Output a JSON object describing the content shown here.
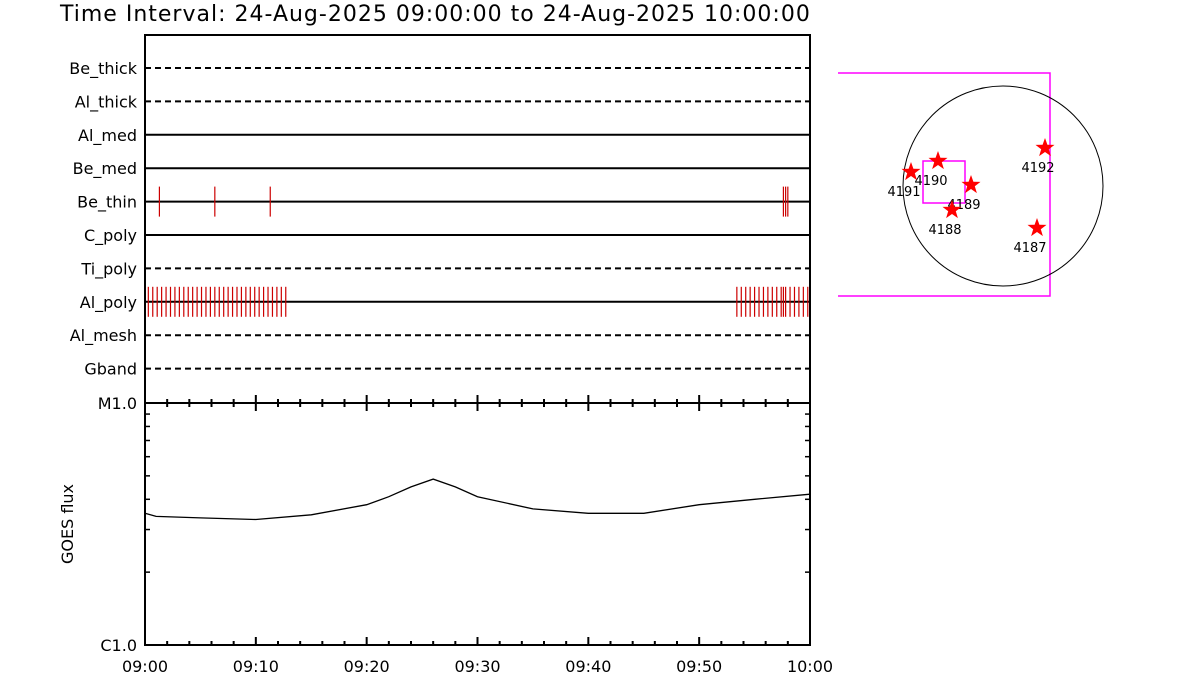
{
  "title": "Time Interval: 24-Aug-2025 09:00:00 to 24-Aug-2025 10:00:00",
  "colors": {
    "axis": "#000000",
    "event_tick": "#cc0000",
    "fov_box": "#ff00ff",
    "star": "#ff0000"
  },
  "chart_data": [
    {
      "type": "timeline",
      "xlabel": "",
      "x_range": [
        "09:00",
        "10:00"
      ],
      "tick_labels": [
        "09:00",
        "09:10",
        "09:20",
        "09:30",
        "09:40",
        "09:50",
        "10:00"
      ],
      "rows": [
        {
          "label": "Be_thick",
          "style": "dashed",
          "events": []
        },
        {
          "label": "Al_thick",
          "style": "dashed",
          "events": []
        },
        {
          "label": "Al_med",
          "style": "solid",
          "events": []
        },
        {
          "label": "Be_med",
          "style": "solid",
          "events": []
        },
        {
          "label": "Be_thin",
          "style": "solid",
          "events": [
            "09:01:18",
            "09:06:18",
            "09:11:18",
            "09:57:36",
            "09:57:48",
            "09:58:00"
          ]
        },
        {
          "label": "C_poly",
          "style": "solid",
          "events": []
        },
        {
          "label": "Ti_poly",
          "style": "dashed",
          "events": []
        },
        {
          "label": "Al_poly",
          "style": "solid",
          "events": [
            "09:00:18",
            "09:00:42",
            "09:01:06",
            "09:01:30",
            "09:01:54",
            "09:02:18",
            "09:02:42",
            "09:03:06",
            "09:03:30",
            "09:03:54",
            "09:04:18",
            "09:04:42",
            "09:05:06",
            "09:05:30",
            "09:05:54",
            "09:06:18",
            "09:06:42",
            "09:07:06",
            "09:07:30",
            "09:07:54",
            "09:08:18",
            "09:08:42",
            "09:09:06",
            "09:09:30",
            "09:09:54",
            "09:10:18",
            "09:10:42",
            "09:11:06",
            "09:11:30",
            "09:11:54",
            "09:12:18",
            "09:12:42",
            "09:53:24",
            "09:53:48",
            "09:54:12",
            "09:54:36",
            "09:55:00",
            "09:55:24",
            "09:55:48",
            "09:56:12",
            "09:56:36",
            "09:57:00",
            "09:57:24",
            "09:57:36",
            "09:57:48",
            "09:58:12",
            "09:58:36",
            "09:59:00",
            "09:59:24",
            "09:59:48"
          ]
        },
        {
          "label": "Al_mesh",
          "style": "dashed",
          "events": []
        },
        {
          "label": "Gband",
          "style": "dashed",
          "events": []
        }
      ]
    },
    {
      "type": "line",
      "ylabel": "GOES flux",
      "y_scale": "log",
      "ylim": [
        1e-06,
        1e-05
      ],
      "y_tick_labels": [
        "C1.0",
        "M1.0"
      ],
      "x": [
        "09:00",
        "09:01",
        "09:05",
        "09:10",
        "09:15",
        "09:20",
        "09:22",
        "09:24",
        "09:26",
        "09:28",
        "09:30",
        "09:35",
        "09:40",
        "09:45",
        "09:50",
        "09:55",
        "10:00"
      ],
      "series": [
        {
          "values": [
            3.5e-06,
            3.4e-06,
            3.35e-06,
            3.3e-06,
            3.45e-06,
            3.8e-06,
            4.1e-06,
            4.5e-06,
            4.85e-06,
            4.5e-06,
            4.1e-06,
            3.65e-06,
            3.5e-06,
            3.5e-06,
            3.8e-06,
            4e-06,
            4.2e-06
          ]
        }
      ]
    },
    {
      "type": "scatter",
      "subtype": "solar-disk-map",
      "points": [
        {
          "label": "4192",
          "x": 0.42,
          "y": 0.38
        },
        {
          "label": "4190",
          "x": -0.65,
          "y": 0.25
        },
        {
          "label": "4191",
          "x": -0.92,
          "y": 0.14
        },
        {
          "label": "4189",
          "x": -0.32,
          "y": 0.01
        },
        {
          "label": "4188",
          "x": -0.51,
          "y": -0.24
        },
        {
          "label": "4187",
          "x": 0.34,
          "y": -0.42
        }
      ]
    }
  ]
}
